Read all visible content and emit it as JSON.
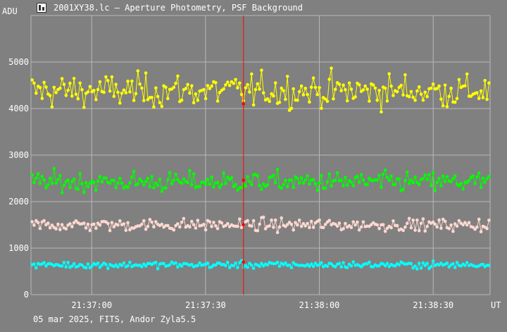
{
  "window": {
    "title": "2001XY38.lc – Aperture Photometry, PSF Background",
    "icon": "photometry-app-icon"
  },
  "footer": {
    "info": "05 mar 2025, FITS, Andor Zyla5.5"
  },
  "colors": {
    "background": "#808080",
    "grid": "#b8b8b8",
    "cursor": "#ff0000",
    "series_1": "#ffff00",
    "series_2": "#00ff00",
    "series_3": "#ffd8d0",
    "series_4": "#00ffff"
  },
  "chart_data": {
    "type": "line",
    "title": "",
    "ylabel": "ADU",
    "xlabel": "UT",
    "ylim": [
      0,
      6000
    ],
    "yticks": [
      0,
      1000,
      2000,
      3000,
      4000,
      5000
    ],
    "ytick_labels": [
      "0",
      "1000",
      "2000",
      "3000",
      "4000",
      "5000"
    ],
    "xlim": [
      "21:36:44",
      "21:38:45"
    ],
    "xticks": [
      "21:37:00",
      "21:37:30",
      "21:38:00",
      "21:38:30"
    ],
    "grid": true,
    "markers": true,
    "cursor": {
      "time": "21:37:40",
      "values": [
        4100,
        2460,
        1500,
        700
      ]
    },
    "series": [
      {
        "color": "#ffff00",
        "mean": 4380,
        "scatter": 300,
        "values_range": [
          3560,
          5250
        ]
      },
      {
        "color": "#00ff00",
        "mean": 2420,
        "scatter": 180,
        "values_range": [
          1840,
          3030
        ]
      },
      {
        "color": "#ffd8d0",
        "mean": 1500,
        "scatter": 110,
        "values_range": [
          1160,
          1860
        ]
      },
      {
        "color": "#00ffff",
        "mean": 640,
        "scatter": 60,
        "values_range": [
          430,
          880
        ]
      }
    ],
    "point_count": 230
  }
}
